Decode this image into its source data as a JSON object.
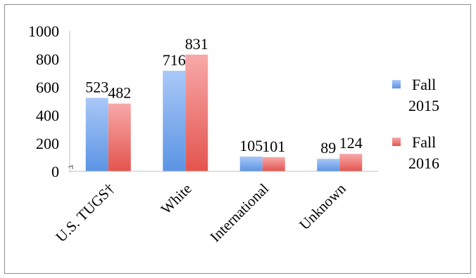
{
  "chart_data": {
    "type": "bar",
    "categories": [
      "U.S. TUGS†",
      "White",
      "International",
      "Unknown"
    ],
    "series": [
      {
        "name": "Fall 2015",
        "name_lines": [
          "Fall",
          "2015"
        ],
        "values": [
          523,
          716,
          105,
          89
        ],
        "color_top": "#a9c8f7",
        "color_bottom": "#5b94e4"
      },
      {
        "name": "Fall 2016",
        "name_lines": [
          "Fall",
          "2016"
        ],
        "values": [
          482,
          831,
          101,
          124
        ],
        "color_top": "#f7a9a9",
        "color_bottom": "#e4544e"
      }
    ],
    "y_ticks": [
      "0",
      "200",
      "400",
      "600",
      "800",
      "1000"
    ],
    "ylim": [
      0,
      1000
    ],
    "grid": false,
    "legend": "right"
  }
}
